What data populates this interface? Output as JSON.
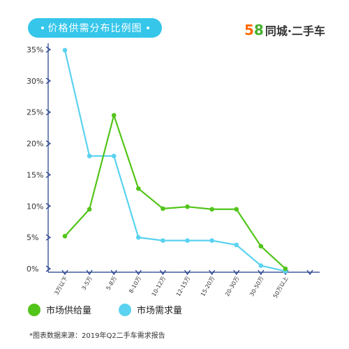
{
  "header": {
    "title": "价格供需分布比例图",
    "logo_5": "5",
    "logo_8": "8",
    "logo_text": "同城·二手车"
  },
  "colors": {
    "supply": "#52c41a",
    "demand": "#5ad2f0",
    "axis": "#1d3a8a",
    "title_bg": "#35c6ea"
  },
  "chart_data": {
    "type": "line",
    "categories": [
      "3万以下",
      "3-5万",
      "5-8万",
      "8-10万",
      "10-12万",
      "12-15万",
      "15-20万",
      "20-30万",
      "30-50万",
      "50万以上"
    ],
    "series": [
      {
        "name": "市场供给量",
        "values": [
          5.2,
          9.5,
          24.5,
          12.8,
          9.6,
          9.9,
          9.5,
          9.5,
          3.6,
          0.0
        ]
      },
      {
        "name": "市场需求量",
        "values": [
          34.9,
          18.0,
          18.0,
          5.0,
          4.5,
          4.5,
          4.5,
          3.8,
          0.5,
          -0.4
        ]
      }
    ],
    "yticks": [
      "35%",
      "30%",
      "25%",
      "20%",
      "15%",
      "10%",
      "5%",
      "0%"
    ],
    "ylim": [
      0,
      35
    ],
    "grid": false,
    "legend_position": "bottom-left"
  },
  "legend": {
    "supply_label": "市场供给量",
    "demand_label": "市场需求量"
  },
  "footer": {
    "source": "*图表数据来源：2019年Q2二手车需求报告"
  }
}
